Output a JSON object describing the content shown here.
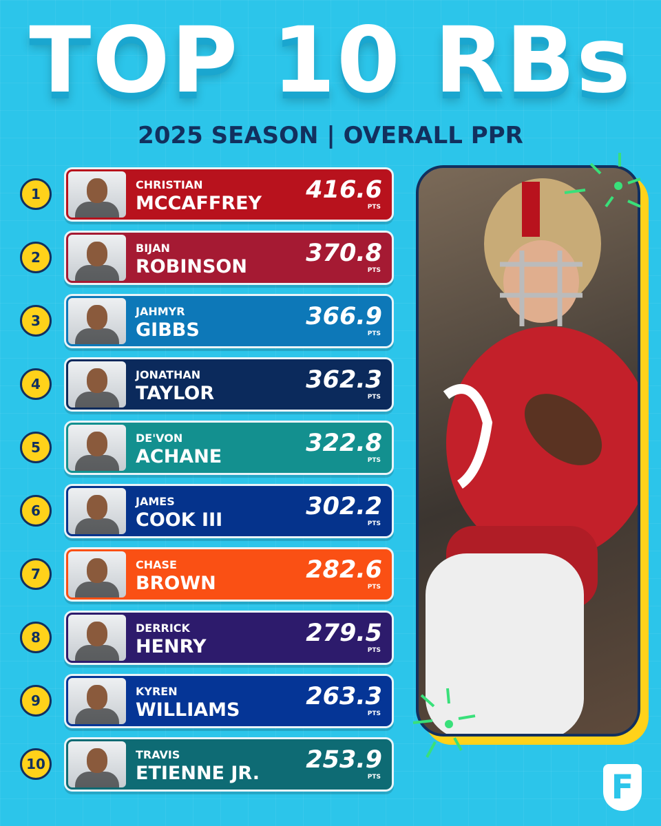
{
  "header": {
    "title": "TOP 10 RBs",
    "subtitle": "2025 SEASON | OVERALL PPR"
  },
  "unit": "PTS",
  "logo_text": "F",
  "players": [
    {
      "rank": 1,
      "first": "CHRISTIAN",
      "last": "MCCAFFREY",
      "points": 416.6,
      "color": "#b8121d"
    },
    {
      "rank": 2,
      "first": "BIJAN",
      "last": "ROBINSON",
      "points": 370.8,
      "color": "#a51a33"
    },
    {
      "rank": 3,
      "first": "JAHMYR",
      "last": "GIBBS",
      "points": 366.9,
      "color": "#0d78b8"
    },
    {
      "rank": 4,
      "first": "JONATHAN",
      "last": "TAYLOR",
      "points": 362.3,
      "color": "#0b2a5c"
    },
    {
      "rank": 5,
      "first": "DE'VON",
      "last": "ACHANE",
      "points": 322.8,
      "color": "#13908f"
    },
    {
      "rank": 6,
      "first": "JAMES",
      "last": "COOK III",
      "points": 302.2,
      "color": "#05338c"
    },
    {
      "rank": 7,
      "first": "CHASE",
      "last": "BROWN",
      "points": 282.6,
      "color": "#fa5014"
    },
    {
      "rank": 8,
      "first": "DERRICK",
      "last": "HENRY",
      "points": 279.5,
      "color": "#2d1b6c"
    },
    {
      "rank": 9,
      "first": "KYREN",
      "last": "WILLIAMS",
      "points": 263.3,
      "color": "#053596"
    },
    {
      "rank": 10,
      "first": "TRAVIS",
      "last": "ETIENNE JR.",
      "points": 253.9,
      "color": "#0e6b74"
    }
  ]
}
